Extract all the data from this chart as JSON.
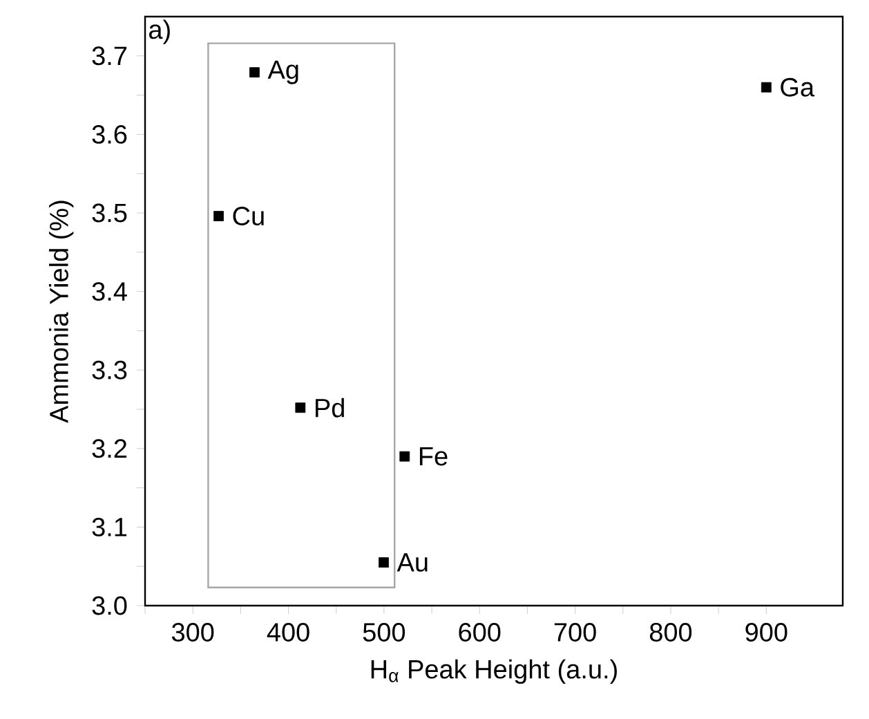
{
  "chart_data": {
    "type": "scatter",
    "xlabel": "H$_{α}$ Peak Height (a.u.)",
    "ylabel": "Ammonia Yield (%)",
    "x": [
      364.5,
      327,
      412.5,
      521.6,
      499.7,
      900
    ],
    "values": [
      3.679,
      3.496,
      3.252,
      3.19,
      3.055,
      3.66
    ],
    "color": "#000000",
    "marker": "square",
    "xlim": [
      250,
      980
    ],
    "xticks": [
      {
        "value": 250,
        "label": null
      },
      300,
      {
        "value": 350,
        "label": null
      },
      400,
      {
        "value": 450,
        "label": null
      },
      500,
      {
        "value": 550,
        "label": null
      },
      600,
      {
        "value": 650,
        "label": null
      },
      700,
      {
        "value": 750,
        "label": null
      },
      800,
      {
        "value": 850,
        "label": null
      },
      900
    ],
    "ylim": [
      3.0,
      3.75
    ],
    "yticks": [
      {
        "value": 3.0,
        "label": "3.0"
      },
      {
        "value": 3.05,
        "label": null
      },
      3.1,
      {
        "value": 3.15,
        "label": null
      },
      3.2,
      {
        "value": 3.25,
        "label": null
      },
      3.3,
      {
        "value": 3.35,
        "label": null
      },
      3.4,
      {
        "value": 3.45,
        "label": null
      },
      3.5,
      {
        "value": 3.55,
        "label": null
      },
      3.6,
      {
        "value": 3.65,
        "label": null
      },
      3.7
    ],
    "annotations": [
      "a)",
      {
        "text": "Ag",
        "x": 364.5,
        "y": 3.679
      },
      {
        "text": "Cu",
        "x": 327,
        "y": 3.496
      },
      {
        "text": "Pd",
        "x": 412.5,
        "y": 3.252
      },
      {
        "text": "Fe",
        "x": 521.6,
        "y": 3.19
      },
      {
        "text": "Au",
        "x": 499.7,
        "y": 3.055
      },
      {
        "text": "Ga",
        "x": 900,
        "y": 3.66
      }
    ]
  }
}
